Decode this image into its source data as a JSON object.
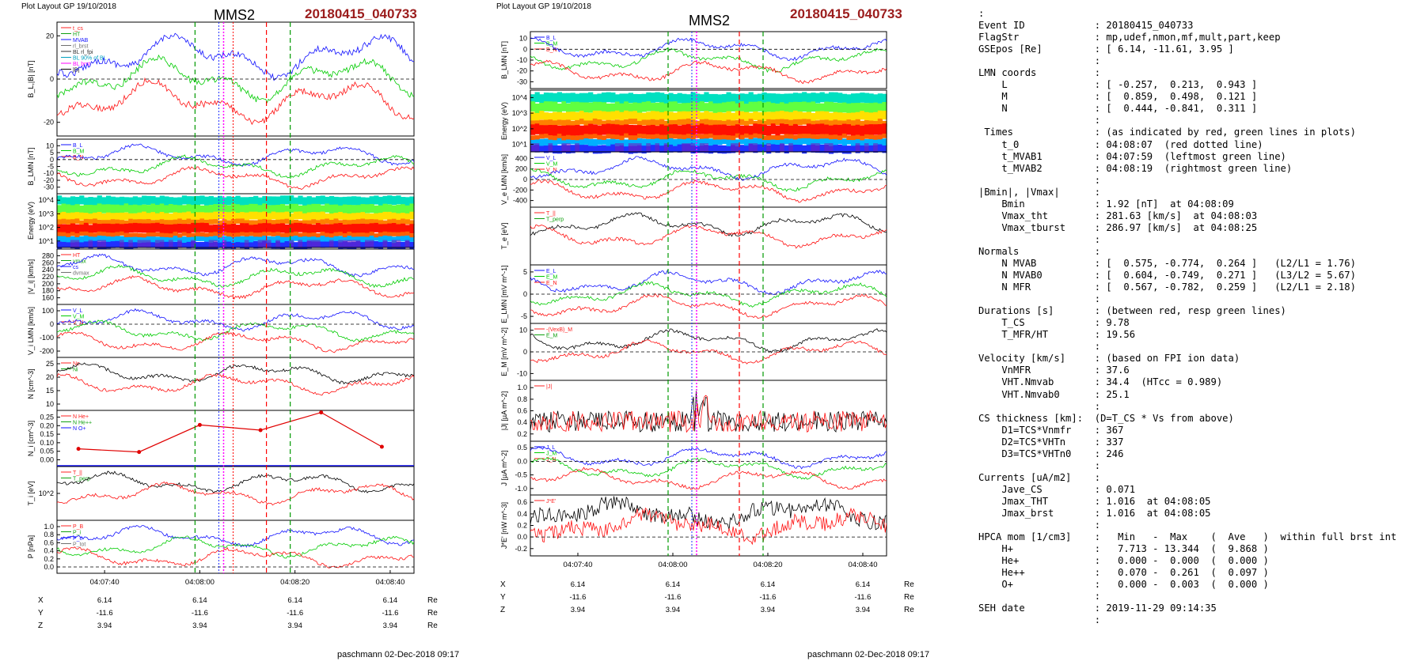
{
  "figures": [
    {
      "plot_layout": "Plot Layout GP 19/10/2018",
      "spacecraft": "MMS2",
      "event": "20180415_040733",
      "time_ticks": [
        "04:07:40",
        "04:08:00",
        "04:08:20",
        "04:08:40"
      ],
      "positions": [
        {
          "axis": "X",
          "values": [
            "6.14",
            "6.14",
            "6.14",
            "6.14"
          ],
          "unit": "Re"
        },
        {
          "axis": "Y",
          "values": [
            "-11.6",
            "-11.6",
            "-11.6",
            "-11.6"
          ],
          "unit": "Re"
        },
        {
          "axis": "Z",
          "values": [
            "3.94",
            "3.94",
            "3.94",
            "3.94"
          ],
          "unit": "Re"
        }
      ],
      "footer": "paschmann 02-Dec-2018 09:17"
    },
    {
      "plot_layout": "Plot Layout GP 19/10/2018",
      "spacecraft": "MMS2",
      "event": "20180415_040733",
      "time_ticks": [
        "04:07:40",
        "04:08:00",
        "04:08:20",
        "04:08:40"
      ],
      "positions": [
        {
          "axis": "X",
          "values": [
            "6.14",
            "6.14",
            "6.14",
            "6.14"
          ],
          "unit": "Re"
        },
        {
          "axis": "Y",
          "values": [
            "-11.6",
            "-11.6",
            "-11.6",
            "-11.6"
          ],
          "unit": "Re"
        },
        {
          "axis": "Z",
          "values": [
            "3.94",
            "3.94",
            "3.94",
            "3.94"
          ],
          "unit": "Re"
        }
      ],
      "footer": "paschmann 02-Dec-2018 09:17"
    }
  ],
  "summary_lines": [
    ":",
    "Event ID            : 20180415_040733",
    "FlagStr             : mp,udef,nmon,mf,mult,part,keep",
    "GSEpos [Re]         : [ 6.14, -11.61, 3.95 ]",
    "                    :",
    "LMN coords          :",
    "    L               : [ -0.257,  0.213,  0.943 ]",
    "    M               : [  0.859,  0.498,  0.121 ]",
    "    N               : [  0.444, -0.841,  0.311 ]",
    "                    :",
    " Times              : (as indicated by red, green lines in plots)",
    "    t_0             : 04:08:07  (red dotted line)",
    "    t_MVAB1         : 04:07:59  (leftmost green line)",
    "    t_MVAB2         : 04:08:19  (rightmost green line)",
    "                    :",
    "|Bmin|, |Vmax|      :",
    "    Bmin            : 1.92 [nT]  at 04:08:09",
    "    Vmax_tht        : 281.63 [km/s]  at 04:08:03",
    "    Vmax_tburst     : 286.97 [km/s]  at 04:08:25",
    "                    :",
    "Normals             :",
    "    N MVAB          : [  0.575, -0.774,  0.264 ]   (L2/L1 = 1.76)",
    "    N MVAB0         : [  0.604, -0.749,  0.271 ]   (L3/L2 = 5.67)",
    "    N MFR           : [  0.567, -0.782,  0.259 ]   (L2/L1 = 2.18)",
    "                    :",
    "Durations [s]       : (between red, resp green lines)",
    "    T_CS            : 9.78",
    "    T_MFR/HT        : 19.56",
    "                    :",
    "Velocity [km/s]     : (based on FPI ion data)",
    "    VnMFR           : 37.6",
    "    VHT.Nmvab       : 34.4  (HTcc = 0.989)",
    "    VHT.Nmvab0      : 25.1",
    "                    :",
    "CS thickness [km]:  (D=T_CS * Vs from above)",
    "    D1=TCS*Vnmfr    : 367",
    "    D2=TCS*VHTn     : 337",
    "    D3=TCS*VHTn0    : 246",
    "                    :",
    "Currents [uA/m2]    :",
    "    Jave_CS         : 0.071",
    "    Jmax_THT        : 1.016  at 04:08:05",
    "    Jmax_brst       : 1.016  at 04:08:05",
    "                    :",
    "HPCA mom [1/cm3]    :   Min   -  Max    (  Ave   )  within full brst int",
    "    H+              :   7.713 - 13.344  (  9.868 )",
    "    He+             :   0.000 -  0.000  (  0.000 )",
    "    He++            :   0.070 -  0.261  (  0.097 )",
    "    O+              :   0.000 -  0.003  (  0.000 )",
    "                    :",
    "SEH date            : 2019-11-29 09:14:35",
    "                    :"
  ],
  "chart_data": [
    {
      "type": "line",
      "figure": "left",
      "time_range": [
        "04:07:30",
        "04:08:45"
      ],
      "event_lines": {
        "green_dashed": [
          "04:07:59",
          "04:08:19"
        ],
        "red_dotted": [
          "04:08:07"
        ],
        "red_dashed": [
          "04:08:14"
        ],
        "magenta_dotted": [
          "04:08:05"
        ],
        "blue_dotted": [
          "04:08:04"
        ]
      },
      "panels": [
        {
          "ylabel": "B_L,|B| [nT]",
          "ticks": [
            "20",
            "0",
            "-20"
          ],
          "ylim": [
            -30,
            35
          ],
          "legend": [
            "t_cs",
            "HT",
            "MVAB",
            "rl_brst",
            "BL rl_fpi",
            "BL 90% of BL",
            "BL brst",
            "|B|"
          ]
        },
        {
          "ylabel": "B_LMN [nT]",
          "ticks": [
            "10",
            "5",
            "0",
            "-5",
            "-10",
            "-20",
            "-30"
          ],
          "ylim": [
            -35,
            15
          ],
          "legend": [
            "B_L",
            "B_M",
            "B_N"
          ]
        },
        {
          "type": "heatmap",
          "ylabel": "Energy (eV)",
          "ticks": [
            "10^4",
            "10^3",
            "10^2",
            "10^1"
          ]
        },
        {
          "ylabel": "|V_i| [km/s]",
          "ticks": [
            "280",
            "260",
            "240",
            "220",
            "200",
            "180",
            "160"
          ],
          "ylim": [
            150,
            290
          ],
          "legend": [
            "HT",
            "vmax",
            "cs",
            "dvmax"
          ]
        },
        {
          "ylabel": "V_i LMN [km/s]",
          "ticks": [
            "100",
            "0",
            "-100",
            "-200"
          ],
          "ylim": [
            -250,
            120
          ],
          "legend": [
            "V_L",
            "V_M",
            "V_N"
          ]
        },
        {
          "ylabel": "N [cm^-3]",
          "ticks": [
            "25",
            "20",
            "15",
            "10"
          ],
          "ylim": [
            8,
            28
          ],
          "legend": [
            "Ne",
            "Ni"
          ]
        },
        {
          "ylabel": "N_i [cm^-3]",
          "ticks": [
            "0.25",
            "0.20",
            "0.15",
            "0.10",
            "0.05",
            "0.00"
          ],
          "ylim": [
            0,
            0.27
          ],
          "legend": [
            "N He+",
            "N He++",
            "N O+"
          ],
          "series": [
            {
              "name": "N He++",
              "values": [
                0.085,
                0.07,
                0.2,
                0.175,
                0.26,
                0.095
              ]
            }
          ]
        },
        {
          "ylabel": "T_i [eV]",
          "ticks": [
            "10^2"
          ],
          "legend": [
            "T_||",
            "T_perp"
          ]
        },
        {
          "ylabel": "P [nPa]",
          "ticks": [
            "1.0",
            "0.8",
            "0.6",
            "0.4",
            "0.2",
            "0.0"
          ],
          "ylim": [
            0,
            1.05
          ],
          "legend": [
            "P_B",
            "P_i",
            "P_e",
            "P_tot"
          ]
        }
      ]
    },
    {
      "type": "line",
      "figure": "right",
      "time_range": [
        "04:07:30",
        "04:08:45"
      ],
      "event_lines": {
        "green_dashed": [
          "04:07:59",
          "04:08:19"
        ],
        "red_dashed": [
          "04:08:14"
        ],
        "magenta_dotted": [
          "04:08:05"
        ],
        "blue_dotted": [
          "04:08:04"
        ]
      },
      "panels": [
        {
          "ylabel": "B_LMN [nT]",
          "ticks": [
            "10",
            "0",
            "-10",
            "-20",
            "-30"
          ],
          "ylim": [
            -32,
            15
          ],
          "legend": [
            "B_L",
            "B_M",
            "B_N"
          ]
        },
        {
          "type": "heatmap",
          "ylabel": "Energy (eV)",
          "ticks": [
            "10^4",
            "10^3",
            "10^2",
            "10^1"
          ]
        },
        {
          "ylabel": "V_e LMN [km/s]",
          "ticks": [
            "400",
            "200",
            "0",
            "-200",
            "-400"
          ],
          "ylim": [
            -500,
            450
          ],
          "legend": [
            "V_L",
            "V_M",
            "V_N"
          ]
        },
        {
          "ylabel": "T_e [eV]",
          "ticks": [],
          "legend": [
            "T_||",
            "T_perp"
          ]
        },
        {
          "ylabel": "E_LMN [mV m^-1]",
          "ticks": [
            "5",
            "0",
            "-5"
          ],
          "ylim": [
            -7,
            6
          ],
          "legend": [
            "E_L",
            "E_M",
            "E_N"
          ]
        },
        {
          "ylabel": "E_M [mV m^-2]",
          "ticks": [
            "10",
            "0",
            "-10"
          ],
          "ylim": [
            -14,
            14
          ],
          "legend": [
            "-(VexB)_M",
            "E_M"
          ]
        },
        {
          "ylabel": "|J| [µA m^-2]",
          "ticks": [
            "1.0",
            "0.8",
            "0.6",
            "0.4",
            "0.2"
          ],
          "ylim": [
            0,
            1.02
          ],
          "legend": [
            "|J|"
          ]
        },
        {
          "ylabel": "J [µA m^-2]",
          "ticks": [
            "0.5",
            "0.0",
            "-0.5",
            "-1.0"
          ],
          "ylim": [
            -1.1,
            0.6
          ],
          "legend": [
            "J_L",
            "J_M",
            "J_N"
          ]
        },
        {
          "ylabel": "J*E' [nW m^-3]",
          "ticks": [
            "0.6",
            "0.4",
            "0.2",
            "0.0",
            "-0.2"
          ],
          "ylim": [
            -0.3,
            0.65
          ],
          "legend": [
            "J*E'"
          ]
        }
      ]
    }
  ],
  "colors": {
    "event_title": "#9b1c1c",
    "L": "#1010ff",
    "M": "#00cc00",
    "N": "#ff1010",
    "green_line": "#009900",
    "red_line": "#ff0000",
    "magenta_line": "#ff00ff"
  }
}
